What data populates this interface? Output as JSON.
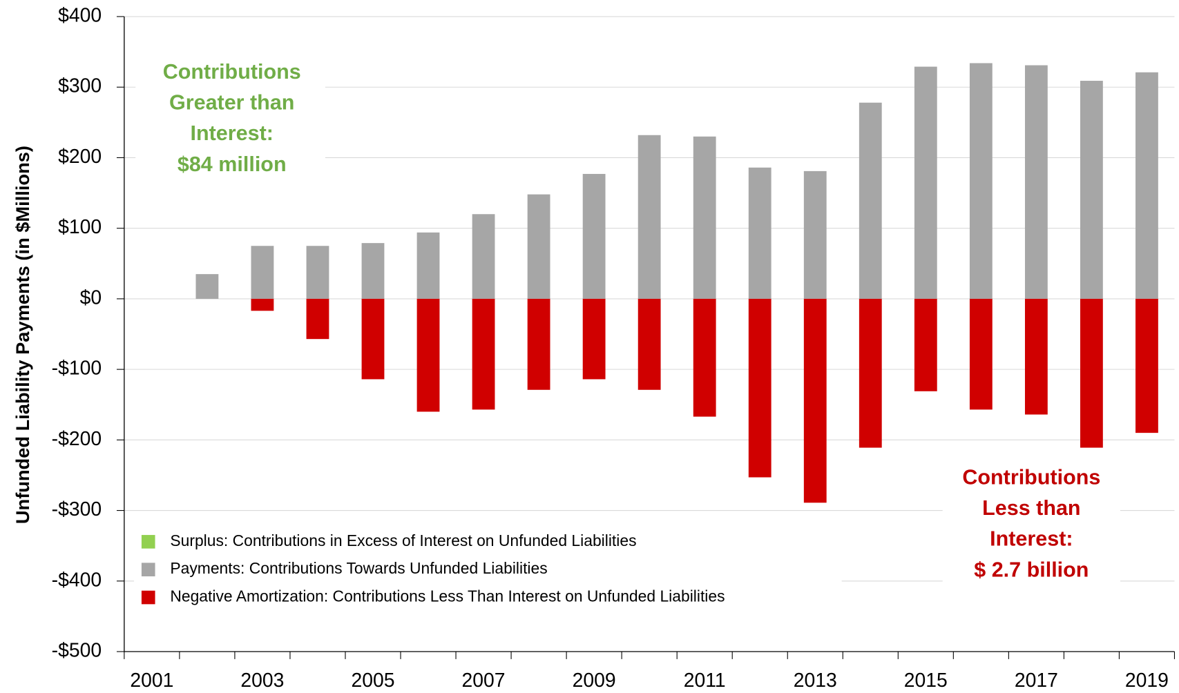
{
  "chart_data": {
    "type": "bar",
    "y_label": "Unfunded Liability Payments (in $Millions)",
    "categories": [
      "2001",
      null,
      "2003",
      null,
      "2005",
      null,
      "2007",
      null,
      "2009",
      null,
      "2011",
      null,
      "2013",
      null,
      "2015",
      null,
      "2017",
      null,
      "2019"
    ],
    "series": [
      {
        "name": "Surplus: Contributions in Excess of Interest on Unfunded Liabilities",
        "color": "#92d050",
        "values": [
          null,
          null,
          null,
          null,
          null,
          null,
          null,
          null,
          null,
          null,
          null,
          null,
          null,
          null,
          null,
          null,
          null,
          null,
          null
        ]
      },
      {
        "name": "Payments: Contributions Towards Unfunded Liabilities",
        "color": "#a6a6a6",
        "values": [
          null,
          35,
          75,
          75,
          79,
          94,
          120,
          148,
          177,
          232,
          230,
          186,
          181,
          278,
          329,
          334,
          331,
          309,
          321
        ]
      },
      {
        "name": "Negative Amortization: Contributions Less Than Interest on Unfunded Liabilities",
        "color": "#d00000",
        "values": [
          null,
          null,
          -17,
          -57,
          -114,
          -160,
          -157,
          -129,
          -114,
          -129,
          -167,
          -253,
          -289,
          -211,
          -131,
          -157,
          -164,
          -211,
          -190
        ]
      }
    ],
    "ylim": [
      -500,
      400
    ],
    "yticks": [
      {
        "value": -500,
        "label": "-$500"
      },
      {
        "value": -400,
        "label": "-$400"
      },
      {
        "value": -300,
        "label": "-$300"
      },
      {
        "value": -200,
        "label": "-$200"
      },
      {
        "value": -100,
        "label": "-$100"
      },
      {
        "value": 0,
        "label": "$0"
      },
      {
        "value": 100,
        "label": "$100"
      },
      {
        "value": 200,
        "label": "$200"
      },
      {
        "value": 300,
        "label": "$300"
      },
      {
        "value": 400,
        "label": "$400"
      }
    ],
    "grid": true,
    "annotations": [
      {
        "lines": [
          "Contributions",
          "Greater than",
          "Interest:",
          "$84 million"
        ],
        "color": "#70ad47"
      },
      {
        "lines": [
          "Contributions",
          "Less than",
          "Interest:",
          "$ 2.7 billion"
        ],
        "color": "#c00000"
      }
    ]
  }
}
